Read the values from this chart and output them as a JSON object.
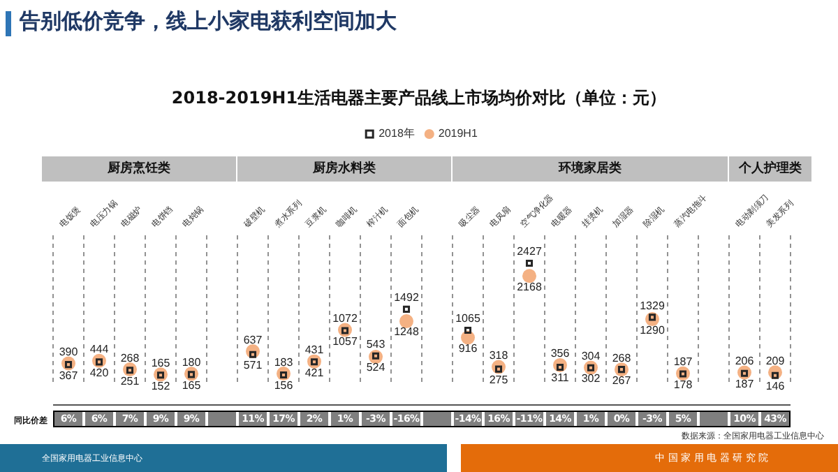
{
  "chart_data": {
    "type": "scatter",
    "title": "告别低价竞争，线上小家电获利空间加大",
    "subtitle": "2018-2019H1生活电器主要产品线上市场均价对比（单位：元）",
    "categories": [
      "电饭煲",
      "电压力锅",
      "电磁炉",
      "电饼铛",
      "电炖锅",
      null,
      "破壁机",
      "煮水系列",
      "豆浆机",
      "咖啡机",
      "榨汁机",
      "面包机",
      null,
      "吸尘器",
      "电风扇",
      "空气净化器",
      "电暖器",
      "挂烫机",
      "加湿器",
      "除湿机",
      "蒸汽电拖斗",
      null,
      "电动剃须刀",
      "美发系列"
    ],
    "series": [
      {
        "name": "2018年",
        "color": "#262626",
        "marker": "square",
        "values": [
          367,
          420,
          251,
          152,
          165,
          null,
          571,
          156,
          421,
          1057,
          543,
          1492,
          null,
          1065,
          275,
          2427,
          311,
          302,
          268,
          1329,
          178,
          null,
          187,
          146
        ]
      },
      {
        "name": "2019H1",
        "color": "#f4b183",
        "marker": "circle",
        "values": [
          390,
          444,
          268,
          165,
          180,
          null,
          637,
          183,
          431,
          1072,
          524,
          1248,
          null,
          916,
          318,
          2168,
          356,
          304,
          267,
          1290,
          187,
          null,
          206,
          209
        ]
      }
    ],
    "data_labels": true,
    "legend": "top",
    "grid": "x",
    "annotations": [
      "厨房烹饪类",
      "厨房水料类",
      "环境家居类",
      "个人护理类",
      "同比价差",
      "6%",
      "6%",
      "7%",
      "9%",
      "9%",
      "11%",
      "17%",
      "2%",
      "1%",
      "-3%",
      "-16%",
      "-14%",
      "16%",
      "-11%",
      "14%",
      "1%",
      "0%",
      "-3%",
      "5%",
      "10%",
      "43%",
      "数据来源：全国家用电器工业信息中心",
      "全国家用电器工业信息中心",
      "中 国 家 用 电 器 研 究 院"
    ]
  }
}
